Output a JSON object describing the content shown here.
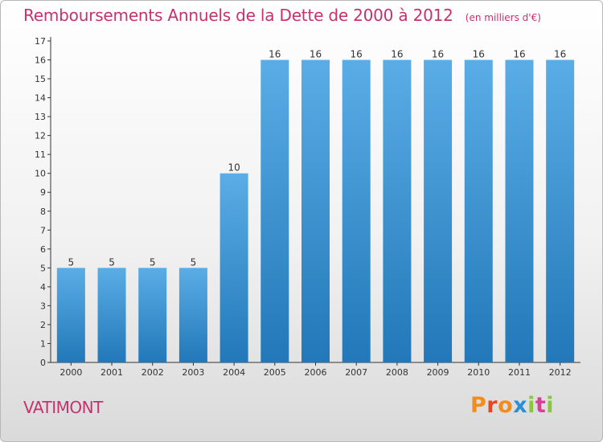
{
  "header": {
    "title": "Remboursements Annuels de la Dette de 2000 à 2012",
    "unit": "(en milliers d'€)"
  },
  "footer": {
    "commune": "VATIMONT",
    "brand": "Proxiti",
    "brand_colors": [
      "#f28c1e",
      "#e8471b",
      "#f28c1e",
      "#2b8fd6",
      "#8cc63f",
      "#d84097",
      "#8cc63f"
    ]
  },
  "colors": {
    "title": "#c8306f",
    "bar_top": "#5aade6",
    "bar_bottom": "#2278b8",
    "axis": "#333333"
  },
  "chart_data": {
    "type": "bar",
    "title": "Remboursements Annuels de la Dette de 2000 à 2012",
    "subtitle": "(en milliers d'€)",
    "xlabel": "",
    "ylabel": "",
    "categories": [
      "2000",
      "2001",
      "2002",
      "2003",
      "2004",
      "2005",
      "2006",
      "2007",
      "2008",
      "2009",
      "2010",
      "2011",
      "2012"
    ],
    "values": [
      5,
      5,
      5,
      5,
      10,
      16,
      16,
      16,
      16,
      16,
      16,
      16,
      16
    ],
    "ylim": [
      0,
      17
    ],
    "yticks": [
      0,
      1,
      2,
      3,
      4,
      5,
      6,
      7,
      8,
      9,
      10,
      11,
      12,
      13,
      14,
      15,
      16,
      17
    ],
    "grid": false,
    "legend": "none",
    "data_labels": true
  }
}
